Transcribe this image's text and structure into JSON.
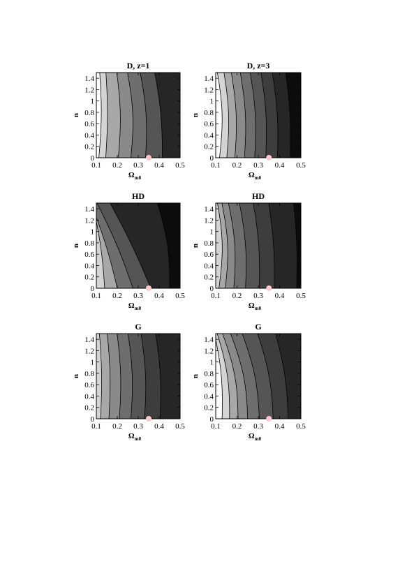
{
  "figure": {
    "colors": {
      "band_shades": [
        "#ffffff",
        "#d4d4d4",
        "#a8a8a8",
        "#8a8a8a",
        "#6e6e6e",
        "#555555",
        "#3d3d3d",
        "#262626",
        "#0c0c0c"
      ],
      "contour_line": "#000000",
      "marker": "#ffc8cc"
    }
  },
  "chart_data": [
    {
      "type": "contour",
      "title": "D, z=1",
      "xlabel": "Ω",
      "xlabel_sub": "m0",
      "ylabel": "n",
      "xlim": [
        0.1,
        0.5
      ],
      "ylim": [
        0,
        1.5
      ],
      "xticks": [
        0.1,
        0.2,
        0.3,
        0.4,
        0.5
      ],
      "xtick_labels": [
        "0.1",
        "0.2",
        "0.3",
        "0.4",
        "0.5"
      ],
      "yticks": [
        0,
        0.2,
        0.4,
        0.6,
        0.8,
        1,
        1.2,
        1.4
      ],
      "ytick_labels": [
        "0",
        "0.2",
        "0.4",
        "0.6",
        "0.8",
        "1",
        "1.2",
        "1.4"
      ],
      "contours_at_n0": [
        0.112,
        0.145,
        0.205,
        0.265,
        0.335,
        0.415
      ],
      "contour_tilt": [
        0.002,
        0.0,
        -0.006,
        -0.012,
        -0.018,
        -0.025
      ],
      "contour_curvature": [
        0.01,
        0.008,
        0.014,
        0.018,
        0.016,
        0.012
      ],
      "band_shade_index": [
        0,
        1,
        2,
        3,
        4,
        5,
        7
      ],
      "marker": {
        "x": 0.35,
        "y": 0
      }
    },
    {
      "type": "contour",
      "title": "D, z=3",
      "xlabel": "Ω",
      "xlabel_sub": "m0",
      "ylabel": "n",
      "xlim": [
        0.1,
        0.5
      ],
      "ylim": [
        0,
        1.5
      ],
      "xticks": [
        0.1,
        0.2,
        0.3,
        0.4,
        0.5
      ],
      "xtick_labels": [
        "0.1",
        "0.2",
        "0.3",
        "0.4",
        "0.5"
      ],
      "yticks": [
        0,
        0.2,
        0.4,
        0.6,
        0.8,
        1,
        1.2,
        1.4
      ],
      "ytick_labels": [
        "0",
        "0.2",
        "0.4",
        "0.6",
        "0.8",
        "1",
        "1.2",
        "1.4"
      ],
      "contours_at_n0": [
        0.118,
        0.152,
        0.19,
        0.235,
        0.283,
        0.335,
        0.39,
        0.45
      ],
      "contour_tilt": [
        -0.008,
        -0.01,
        -0.012,
        -0.014,
        -0.015,
        -0.016,
        -0.017,
        -0.015
      ],
      "contour_curvature": [
        0.018,
        0.016,
        0.015,
        0.015,
        0.014,
        0.013,
        0.012,
        0.01
      ],
      "band_shade_index": [
        0,
        1,
        2,
        3,
        4,
        5,
        6,
        7,
        8
      ],
      "marker": {
        "x": 0.35,
        "y": 0
      }
    },
    {
      "type": "contour",
      "title": "HD",
      "xlabel": "Ω",
      "xlabel_sub": "m0",
      "ylabel": "n",
      "xlim": [
        0.1,
        0.5
      ],
      "ylim": [
        0,
        1.5
      ],
      "xticks": [
        0.1,
        0.2,
        0.3,
        0.4,
        0.5
      ],
      "xtick_labels": [
        "0.1",
        "0.2",
        "0.3",
        "0.4",
        "0.5"
      ],
      "yticks": [
        0,
        0.2,
        0.4,
        0.6,
        0.8,
        1,
        1.2,
        1.4
      ],
      "ytick_labels": [
        "0",
        "0.2",
        "0.4",
        "0.6",
        "0.8",
        "1",
        "1.2",
        "1.4"
      ],
      "contours_at_n0": [
        0.14,
        0.2,
        0.275,
        0.36,
        0.45
      ],
      "contour_tilt": [
        -0.04,
        -0.085,
        -0.115,
        -0.13,
        -0.04
      ],
      "contour_curvature": [
        0.01,
        0.01,
        0.01,
        0.008,
        0.02
      ],
      "band_shade_index": [
        1,
        2,
        4,
        5,
        7,
        8
      ],
      "marker": {
        "x": 0.35,
        "y": 0
      }
    },
    {
      "type": "contour",
      "title": "HD",
      "xlabel": "Ω",
      "xlabel_sub": "m0",
      "ylabel": "n",
      "xlim": [
        0.1,
        0.5
      ],
      "ylim": [
        0,
        1.5
      ],
      "xticks": [
        0.1,
        0.2,
        0.3,
        0.4,
        0.5
      ],
      "xtick_labels": [
        "0.1",
        "0.2",
        "0.3",
        "0.4",
        "0.5"
      ],
      "yticks": [
        0,
        0.2,
        0.4,
        0.6,
        0.8,
        1,
        1.2,
        1.4
      ],
      "ytick_labels": [
        "0",
        "0.2",
        "0.4",
        "0.6",
        "0.8",
        "1",
        "1.2",
        "1.4"
      ],
      "contours_at_n0": [
        0.115,
        0.145,
        0.185,
        0.24,
        0.305,
        0.375,
        0.48
      ],
      "contour_tilt": [
        -0.006,
        -0.012,
        -0.018,
        -0.02,
        -0.02,
        -0.018,
        -0.01
      ],
      "contour_curvature": [
        0.02,
        0.02,
        0.018,
        0.015,
        0.012,
        0.01,
        0.008
      ],
      "band_shade_index": [
        1,
        2,
        3,
        4,
        5,
        6,
        7,
        8
      ],
      "marker": {
        "x": 0.35,
        "y": 0
      }
    },
    {
      "type": "contour",
      "title": "G",
      "xlabel": "Ω",
      "xlabel_sub": "m0",
      "ylabel": "n",
      "xlim": [
        0.1,
        0.5
      ],
      "ylim": [
        0,
        1.5
      ],
      "xticks": [
        0.1,
        0.2,
        0.3,
        0.4,
        0.5
      ],
      "xtick_labels": [
        "0.1",
        "0.2",
        "0.3",
        "0.4",
        "0.5"
      ],
      "yticks": [
        0,
        0.2,
        0.4,
        0.6,
        0.8,
        1,
        1.2,
        1.4
      ],
      "ytick_labels": [
        "0",
        "0.2",
        "0.4",
        "0.6",
        "0.8",
        "1",
        "1.2",
        "1.4"
      ],
      "contours_at_n0": [
        0.12,
        0.16,
        0.21,
        0.265,
        0.33,
        0.405
      ],
      "contour_tilt": [
        -0.004,
        -0.006,
        -0.008,
        -0.01,
        -0.012,
        -0.015
      ],
      "contour_curvature": [
        0.008,
        0.01,
        0.012,
        0.014,
        0.014,
        0.012
      ],
      "band_shade_index": [
        1,
        2,
        3,
        4,
        5,
        6,
        7
      ],
      "marker": {
        "x": 0.35,
        "y": 0
      }
    },
    {
      "type": "contour",
      "title": "G",
      "xlabel": "Ω",
      "xlabel_sub": "m0",
      "ylabel": "n",
      "xlim": [
        0.1,
        0.5
      ],
      "ylim": [
        0,
        1.5
      ],
      "xticks": [
        0.1,
        0.2,
        0.3,
        0.4,
        0.5
      ],
      "xtick_labels": [
        "0.1",
        "0.2",
        "0.3",
        "0.4",
        "0.5"
      ],
      "yticks": [
        0,
        0.2,
        0.4,
        0.6,
        0.8,
        1,
        1.2,
        1.4
      ],
      "ytick_labels": [
        "0",
        "0.2",
        "0.4",
        "0.6",
        "0.8",
        "1",
        "1.2",
        "1.4"
      ],
      "contours_at_n0": [
        0.13,
        0.165,
        0.205,
        0.25,
        0.305,
        0.37,
        0.44
      ],
      "contour_tilt": [
        -0.025,
        -0.04,
        -0.05,
        -0.055,
        -0.055,
        -0.05,
        -0.04
      ],
      "contour_curvature": [
        0.015,
        0.02,
        0.022,
        0.022,
        0.02,
        0.018,
        0.015
      ],
      "band_shade_index": [
        0,
        1,
        2,
        3,
        4,
        5,
        6,
        7
      ],
      "marker": {
        "x": 0.35,
        "y": 0
      }
    }
  ]
}
